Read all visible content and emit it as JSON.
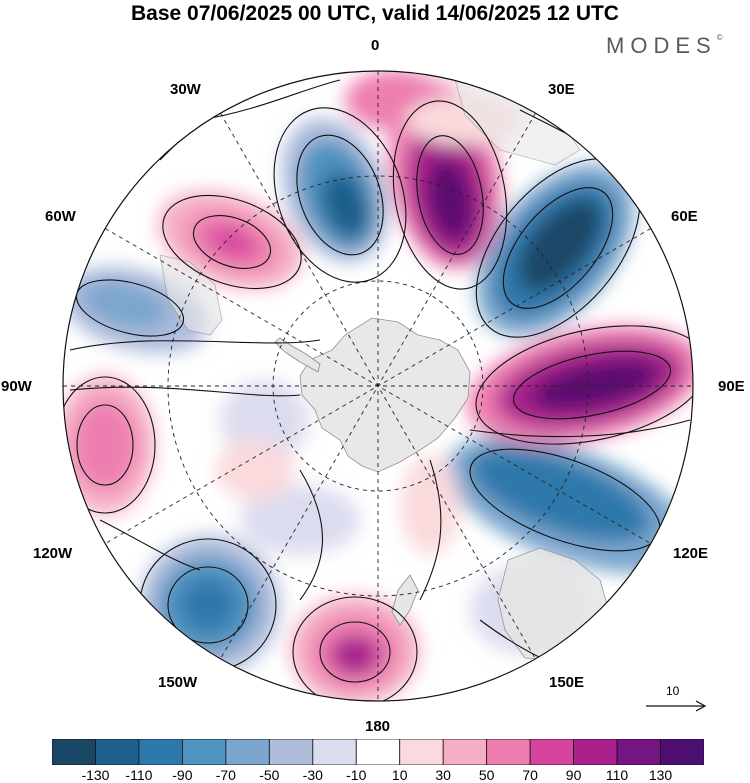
{
  "header": {
    "title": "Base 07/06/2025 00 UTC, valid 14/06/2025 12 UTC",
    "brand": "MODES"
  },
  "map": {
    "projection": "polar stereographic (south pole)",
    "longitude_labels": {
      "top": "0",
      "top_right": "30E",
      "right_upper": "60E",
      "right": "90E",
      "right_lower": "120E",
      "bottom_right": "150E",
      "bottom": "180",
      "bottom_left": "150W",
      "left_lower": "120W",
      "left": "90W",
      "left_upper": "60W",
      "top_left": "30W"
    },
    "reference_vector_label": "10",
    "anomaly_colors": {
      "neutral": "#ffffff",
      "land": "#e6e6e6",
      "strong_negative": "#1d4e6e",
      "strong_positive": "#5c1070"
    }
  },
  "colorbar": {
    "ticks": [
      "-130",
      "-110",
      "-90",
      "-70",
      "-50",
      "-30",
      "-10",
      "10",
      "30",
      "50",
      "70",
      "90",
      "110",
      "130"
    ],
    "colors": [
      "#1a4766",
      "#1e5f8c",
      "#2f78ab",
      "#4f93c0",
      "#7ba6cd",
      "#aebcdc",
      "#dcdcef",
      "#ffffff",
      "#fadadd",
      "#f5aec4",
      "#ed7eb0",
      "#d6449d",
      "#a8208c",
      "#761582",
      "#4e0f72"
    ]
  }
}
